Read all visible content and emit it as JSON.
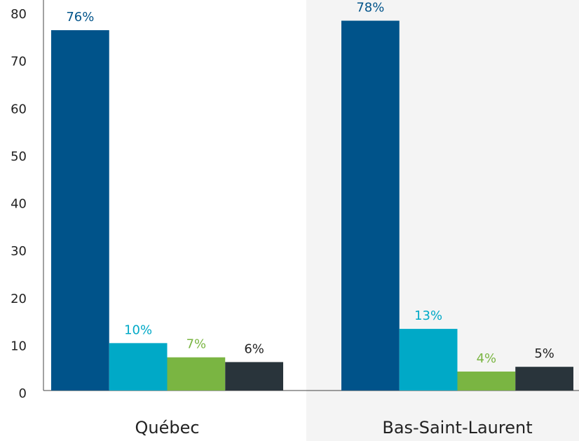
{
  "chart_data": {
    "type": "bar",
    "categories": [
      "Québec",
      "Bas-Saint-Laurent"
    ],
    "series": [
      {
        "color": "#00538a",
        "values": [
          76,
          78
        ],
        "value_labels": [
          "76%",
          "78%"
        ]
      },
      {
        "color": "#00a9c7",
        "values": [
          10,
          13
        ],
        "value_labels": [
          "10%",
          "13%"
        ]
      },
      {
        "color": "#7ab542",
        "values": [
          7,
          4
        ],
        "value_labels": [
          "7%",
          "4%"
        ]
      },
      {
        "color": "#29343b",
        "values": [
          6,
          5
        ],
        "value_labels": [
          "6%",
          "5%"
        ]
      }
    ],
    "ylim": [
      0,
      80
    ],
    "yticks": [
      0,
      10,
      20,
      30,
      40,
      50,
      60,
      70,
      80
    ],
    "grid": false
  }
}
